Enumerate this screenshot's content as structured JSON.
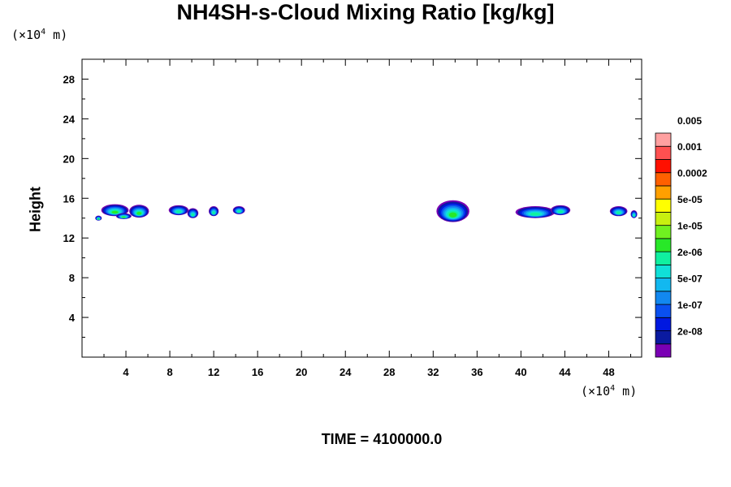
{
  "chart_data": {
    "type": "heatmap",
    "title": "NH4SH-s-Cloud Mixing Ratio [kg/kg]",
    "ylabel": "Height",
    "y_unit": "(×10⁴ m)",
    "x_unit": "(×10⁴ m)",
    "footer": "TIME = 4100000.0",
    "xlim": [
      0,
      51
    ],
    "ylim": [
      0,
      30
    ],
    "x_ticks": [
      4,
      8,
      12,
      16,
      20,
      24,
      28,
      32,
      36,
      40,
      44,
      48
    ],
    "y_ticks": [
      4,
      8,
      12,
      16,
      20,
      24,
      28
    ],
    "colorbar": {
      "colors": [
        "#7a00b4",
        "#0a1aa0",
        "#0018e0",
        "#0a50f0",
        "#1288f0",
        "#12b8f0",
        "#10e0d8",
        "#10f0a0",
        "#28e828",
        "#70f020",
        "#c8f010",
        "#ffff00",
        "#ffa000",
        "#ff6000",
        "#ff1000",
        "#ff5050",
        "#ffa0a0"
      ],
      "labels": [
        "2e-08",
        "1e-07",
        "5e-07",
        "2e-06",
        "1e-05",
        "5e-05",
        "0.0002",
        "0.001",
        "0.005"
      ]
    },
    "cloud_cells": [
      {
        "x": 3.0,
        "y": 14.8,
        "w": 2.5,
        "h": 1.2,
        "max_level": 8
      },
      {
        "x": 1.5,
        "y": 14.0,
        "w": 0.6,
        "h": 0.5,
        "max_level": 8
      },
      {
        "x": 5.2,
        "y": 14.7,
        "w": 1.8,
        "h": 1.3,
        "max_level": 8
      },
      {
        "x": 3.8,
        "y": 14.2,
        "w": 1.4,
        "h": 0.6,
        "max_level": 8
      },
      {
        "x": 8.8,
        "y": 14.8,
        "w": 1.8,
        "h": 1.0,
        "max_level": 7
      },
      {
        "x": 10.1,
        "y": 14.5,
        "w": 1.0,
        "h": 1.0,
        "max_level": 7
      },
      {
        "x": 12.0,
        "y": 14.7,
        "w": 0.9,
        "h": 1.0,
        "max_level": 7
      },
      {
        "x": 14.3,
        "y": 14.8,
        "w": 1.1,
        "h": 0.8,
        "max_level": 7
      },
      {
        "x": 33.8,
        "y": 14.7,
        "w": 3.0,
        "h": 2.2,
        "max_level": 8
      },
      {
        "x": 41.3,
        "y": 14.6,
        "w": 3.6,
        "h": 1.2,
        "max_level": 7
      },
      {
        "x": 43.6,
        "y": 14.8,
        "w": 1.8,
        "h": 1.0,
        "max_level": 7
      },
      {
        "x": 48.9,
        "y": 14.7,
        "w": 1.6,
        "h": 1.0,
        "max_level": 7
      },
      {
        "x": 50.3,
        "y": 14.4,
        "w": 0.6,
        "h": 0.8,
        "max_level": 7
      }
    ]
  }
}
